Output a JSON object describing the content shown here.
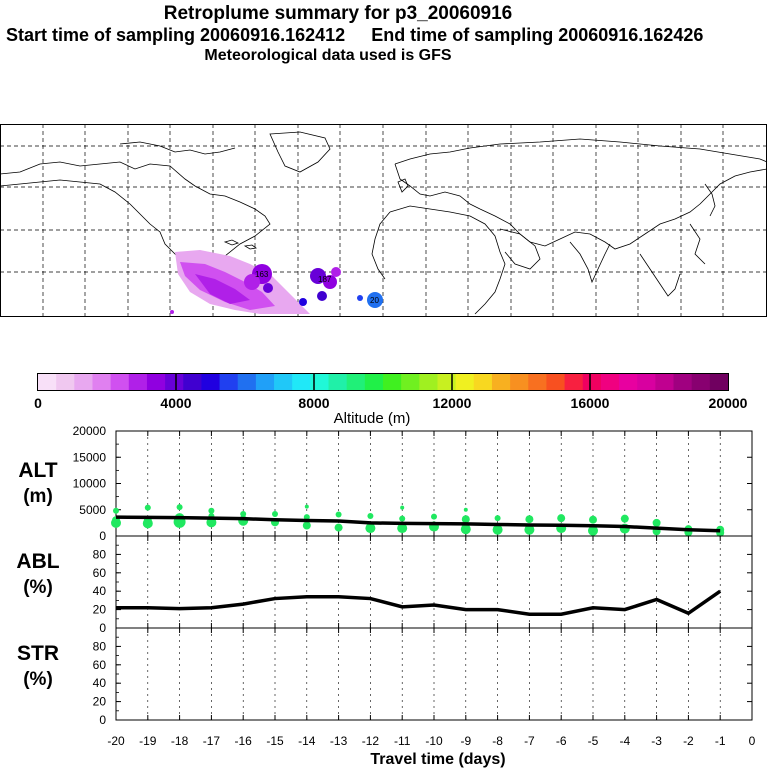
{
  "header": {
    "title": "Retroplume summary for p3_20060916",
    "start_label": "Start time of sampling 20060916.162412",
    "end_label": "End time of sampling 20060916.162426",
    "met_label": "Meteorological data used is GFS"
  },
  "colorbar": {
    "tick_labels": [
      "0",
      "4000",
      "8000",
      "12000",
      "16000",
      "20000"
    ],
    "label": "Altitude (m)",
    "colors": [
      "#f8e0f8",
      "#f0c8f0",
      "#e8a8f0",
      "#e080f0",
      "#d050f0",
      "#b020e8",
      "#9000e0",
      "#6800d8",
      "#4000d0",
      "#2000e0",
      "#2040f0",
      "#2070f0",
      "#20a0f8",
      "#20c8f8",
      "#20e8f8",
      "#20f8d8",
      "#20f0a8",
      "#20f078",
      "#20f048",
      "#40f020",
      "#70f020",
      "#a0f020",
      "#c8f020",
      "#f0f020",
      "#f8d820",
      "#f8b020",
      "#f89020",
      "#f87020",
      "#f85020",
      "#f82040",
      "#f00060",
      "#f00080",
      "#e800a0",
      "#d800a0",
      "#c00090",
      "#a00080",
      "#880070",
      "#700060"
    ]
  },
  "map": {
    "description_text": "",
    "plume_labels": [
      "163",
      "187",
      "20"
    ]
  },
  "chart_data": [
    {
      "type": "scatter+line",
      "name": "ALT",
      "ylabel_top": "ALT",
      "ylabel_bottom": "(m)",
      "ylim": [
        0,
        20000
      ],
      "yticks": [
        "20000",
        "15000",
        "10000",
        "5000",
        "0"
      ],
      "x": [
        -20,
        -19,
        -18,
        -17,
        -16,
        -15,
        -14,
        -13,
        -12,
        -11,
        -10,
        -9,
        -8,
        -7,
        -6,
        -5,
        -4,
        -3,
        -2,
        -1
      ],
      "median_line": [
        3600,
        3550,
        3500,
        3400,
        3300,
        3100,
        2950,
        2850,
        2500,
        2400,
        2350,
        2300,
        2200,
        2100,
        2050,
        1950,
        1800,
        1500,
        1200,
        1000
      ],
      "points": [
        [
          -20,
          4800,
          3
        ],
        [
          -20,
          3000,
          4
        ],
        [
          -20,
          2500,
          5
        ],
        [
          -19,
          5400,
          3
        ],
        [
          -19,
          3000,
          4
        ],
        [
          -19,
          2400,
          5
        ],
        [
          -18,
          5500,
          3
        ],
        [
          -18,
          3400,
          5
        ],
        [
          -18,
          2700,
          6
        ],
        [
          -17,
          4800,
          3
        ],
        [
          -17,
          3800,
          3
        ],
        [
          -17,
          2600,
          5
        ],
        [
          -16,
          4200,
          3
        ],
        [
          -16,
          2900,
          5
        ],
        [
          -15,
          4200,
          3
        ],
        [
          -15,
          2600,
          4
        ],
        [
          -14,
          5600,
          2
        ],
        [
          -14,
          3600,
          3
        ],
        [
          -14,
          2000,
          4
        ],
        [
          -13,
          4100,
          3
        ],
        [
          -13,
          1600,
          4
        ],
        [
          -12,
          3800,
          3
        ],
        [
          -12,
          1500,
          5
        ],
        [
          -11,
          5400,
          2
        ],
        [
          -11,
          3300,
          3
        ],
        [
          -11,
          1500,
          5
        ],
        [
          -10,
          3700,
          3
        ],
        [
          -10,
          1800,
          5
        ],
        [
          -9,
          5000,
          2
        ],
        [
          -9,
          3200,
          4
        ],
        [
          -9,
          1300,
          5
        ],
        [
          -8,
          3400,
          3
        ],
        [
          -8,
          1200,
          5
        ],
        [
          -7,
          3200,
          4
        ],
        [
          -7,
          1200,
          5
        ],
        [
          -6,
          3400,
          4
        ],
        [
          -6,
          1500,
          5
        ],
        [
          -5,
          3100,
          4
        ],
        [
          -5,
          1000,
          5
        ],
        [
          -4,
          3300,
          4
        ],
        [
          -4,
          1400,
          5
        ],
        [
          -3,
          2500,
          4
        ],
        [
          -3,
          900,
          4
        ],
        [
          -2,
          1300,
          4
        ],
        [
          -2,
          700,
          4
        ],
        [
          -1,
          1200,
          4
        ],
        [
          -1,
          600,
          4
        ]
      ],
      "point_color": "#20e860"
    },
    {
      "type": "line",
      "name": "ABL",
      "ylabel_top": "ABL",
      "ylabel_bottom": "(%)",
      "ylim": [
        0,
        100
      ],
      "yticks": [
        "80",
        "60",
        "40",
        "20",
        "0"
      ],
      "x": [
        -20,
        -19,
        -18,
        -17,
        -16,
        -15,
        -14,
        -13,
        -12,
        -11,
        -10,
        -9,
        -8,
        -7,
        -6,
        -5,
        -4,
        -3,
        -2,
        -1
      ],
      "values": [
        22,
        22,
        21,
        22,
        26,
        32,
        34,
        34,
        32,
        23,
        25,
        20,
        20,
        15,
        15,
        22,
        20,
        31,
        16,
        40
      ]
    },
    {
      "type": "line",
      "name": "STR",
      "ylabel_top": "STR",
      "ylabel_bottom": "(%)",
      "ylim": [
        0,
        100
      ],
      "yticks": [
        "80",
        "60",
        "40",
        "20",
        "0"
      ],
      "x": [],
      "values": []
    }
  ],
  "xaxis": {
    "tick_labels": [
      "-20",
      "-19",
      "-18",
      "-17",
      "-16",
      "-15",
      "-14",
      "-13",
      "-12",
      "-11",
      "-10",
      "-9",
      "-8",
      "-7",
      "-6",
      "-5",
      "-4",
      "-3",
      "-2",
      "-1",
      "0"
    ],
    "label": "Travel time (days)"
  }
}
